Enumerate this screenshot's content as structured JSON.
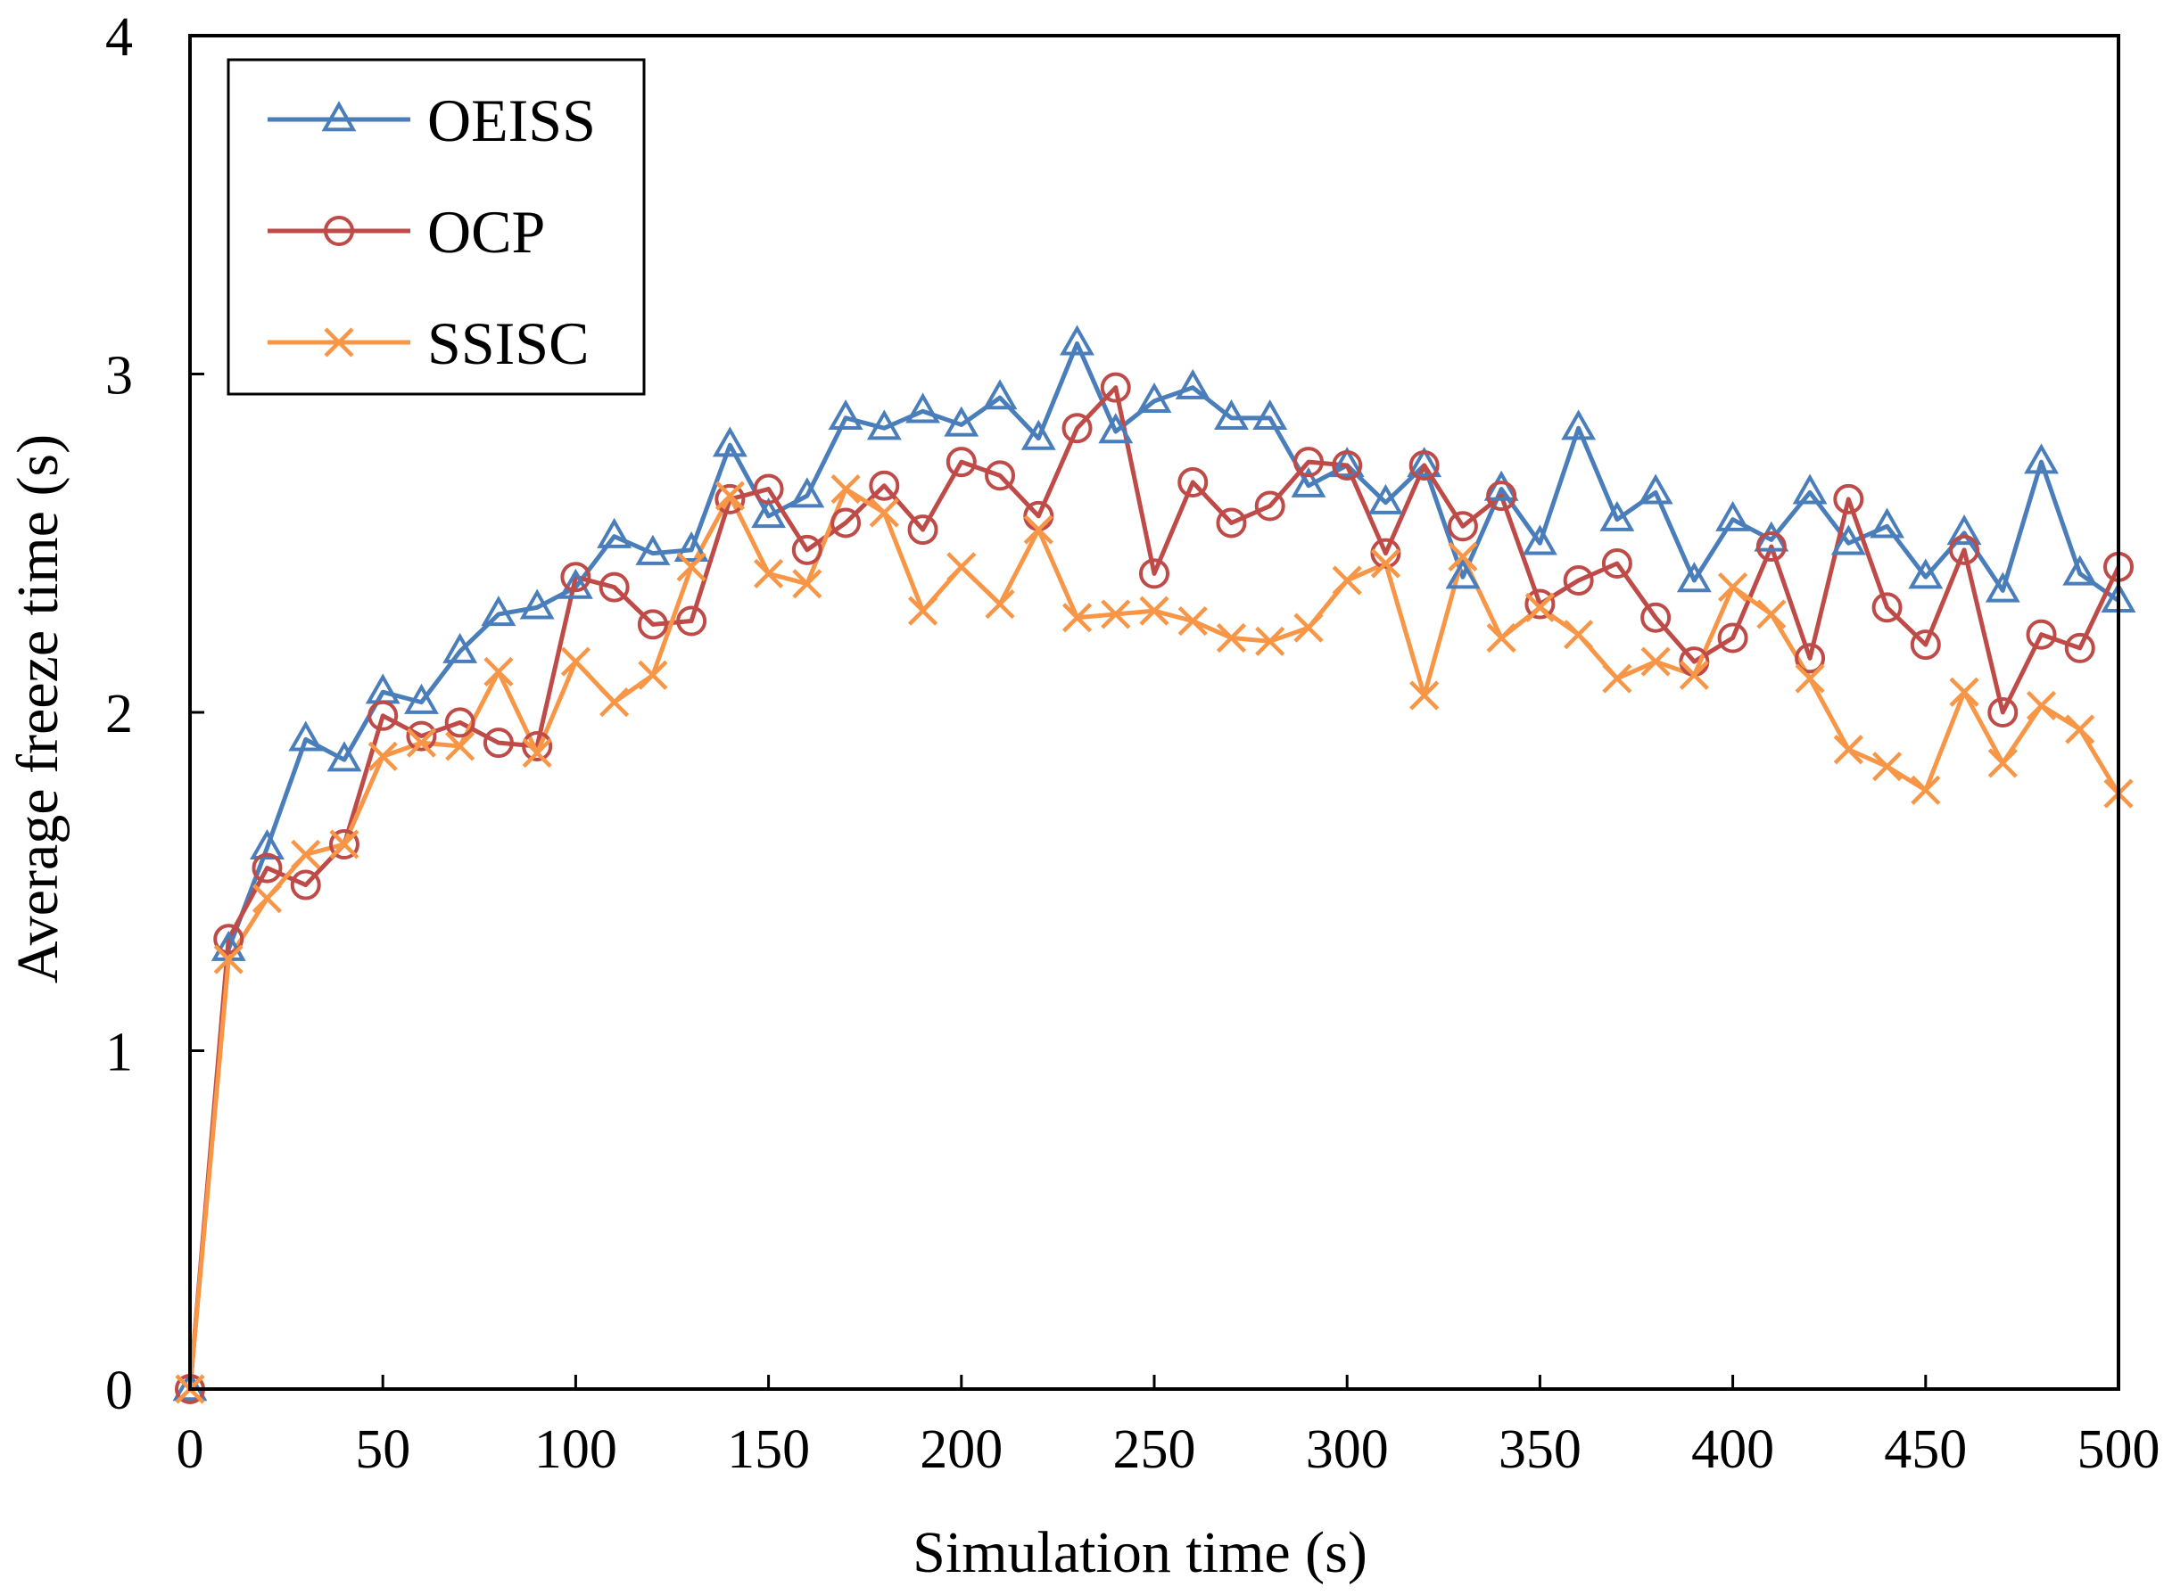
{
  "chart_data": {
    "type": "line",
    "title": "",
    "xlabel": "Simulation time (s)",
    "ylabel": "Average freeze time (s)",
    "xlim": [
      0,
      500
    ],
    "ylim": [
      0,
      4
    ],
    "xticks": [
      0,
      50,
      100,
      150,
      200,
      250,
      300,
      350,
      400,
      450,
      500
    ],
    "yticks": [
      0,
      1,
      2,
      3,
      4
    ],
    "grid": false,
    "legend_position": "top-left",
    "x": [
      0,
      10,
      20,
      30,
      40,
      50,
      60,
      70,
      80,
      90,
      100,
      110,
      120,
      130,
      140,
      150,
      160,
      170,
      180,
      190,
      200,
      210,
      220,
      230,
      240,
      250,
      260,
      270,
      280,
      290,
      300,
      310,
      320,
      330,
      340,
      350,
      360,
      370,
      380,
      390,
      400,
      410,
      420,
      430,
      440,
      450,
      460,
      470,
      480,
      490,
      500
    ],
    "series": [
      {
        "name": "OEISS",
        "color": "#4a7ebb",
        "marker": "triangle",
        "values": [
          0,
          1.3,
          1.6,
          1.92,
          1.86,
          2.06,
          2.03,
          2.18,
          2.29,
          2.31,
          2.37,
          2.52,
          2.47,
          2.48,
          2.79,
          2.58,
          2.64,
          2.87,
          2.84,
          2.89,
          2.85,
          2.93,
          2.81,
          3.09,
          2.83,
          2.92,
          2.96,
          2.87,
          2.87,
          2.67,
          2.73,
          2.62,
          2.73,
          2.4,
          2.66,
          2.5,
          2.84,
          2.57,
          2.65,
          2.39,
          2.57,
          2.51,
          2.65,
          2.5,
          2.55,
          2.4,
          2.53,
          2.36,
          2.74,
          2.41,
          2.33
        ]
      },
      {
        "name": "OCP",
        "color": "#be4b48",
        "marker": "circle",
        "values": [
          0,
          1.33,
          1.54,
          1.49,
          1.61,
          1.99,
          1.93,
          1.97,
          1.91,
          1.9,
          2.4,
          2.37,
          2.26,
          2.27,
          2.63,
          2.66,
          2.48,
          2.56,
          2.67,
          2.54,
          2.74,
          2.7,
          2.58,
          2.84,
          2.96,
          2.41,
          2.68,
          2.56,
          2.61,
          2.74,
          2.73,
          2.47,
          2.73,
          2.55,
          2.64,
          2.32,
          2.39,
          2.44,
          2.28,
          2.15,
          2.22,
          2.49,
          2.16,
          2.63,
          2.31,
          2.2,
          2.48,
          2.0,
          2.23,
          2.19,
          2.43
        ]
      },
      {
        "name": "SSISC",
        "color": "#f79646",
        "marker": "x",
        "values": [
          0,
          1.27,
          1.45,
          1.58,
          1.61,
          1.87,
          1.91,
          1.9,
          2.12,
          1.88,
          2.15,
          2.03,
          2.11,
          2.43,
          2.64,
          2.41,
          2.38,
          2.66,
          2.59,
          2.3,
          2.43,
          2.32,
          2.54,
          2.28,
          2.29,
          2.3,
          2.27,
          2.22,
          2.21,
          2.25,
          2.39,
          2.44,
          2.05,
          2.46,
          2.22,
          2.31,
          2.23,
          2.1,
          2.15,
          2.11,
          2.37,
          2.29,
          2.1,
          1.89,
          1.84,
          1.77,
          2.06,
          1.85,
          2.02,
          1.95,
          1.76
        ]
      }
    ]
  }
}
